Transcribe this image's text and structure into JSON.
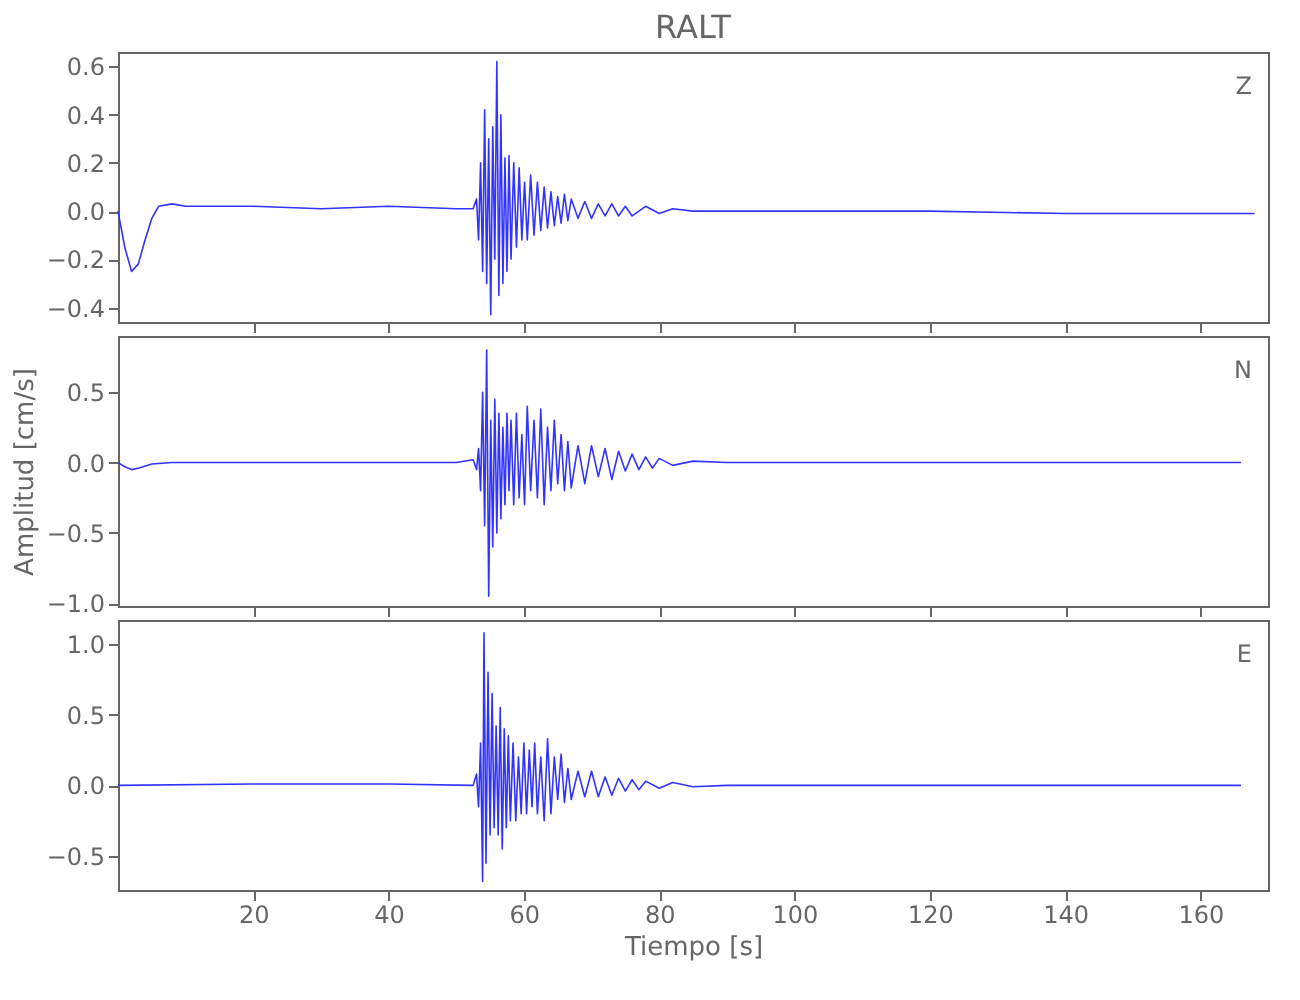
{
  "chart_data": [
    {
      "type": "line",
      "title": "RALT",
      "annotations": [
        "Z"
      ],
      "xlim": [
        0,
        170
      ],
      "xticks": [
        20,
        40,
        60,
        80,
        100,
        120,
        140,
        160
      ],
      "ylim": [
        -0.46,
        0.66
      ],
      "yticks": [
        -0.4,
        -0.2,
        {
          "value": 0,
          "label": "0.0"
        },
        0.2,
        0.4,
        0.6
      ],
      "tick_labels": "y",
      "grid": false,
      "line_style": "solid",
      "marker": "none",
      "x": [
        0,
        1,
        2,
        3,
        4,
        5,
        6,
        8,
        10,
        15,
        20,
        30,
        40,
        50,
        52.5,
        53,
        53.3,
        53.6,
        53.9,
        54.2,
        54.5,
        54.8,
        55.1,
        55.4,
        55.7,
        56,
        56.3,
        56.6,
        56.9,
        57.2,
        57.5,
        57.8,
        58.1,
        58.5,
        58.9,
        59.3,
        59.7,
        60.1,
        60.5,
        61,
        61.5,
        62,
        62.5,
        63,
        63.5,
        64,
        64.5,
        65,
        65.5,
        66,
        66.5,
        67,
        68,
        69,
        70,
        71,
        72,
        73,
        74,
        75,
        76,
        78,
        80,
        82,
        85,
        90,
        100,
        120,
        140,
        160,
        168
      ],
      "series": [
        {
          "color": "#3333ff",
          "values": [
            0,
            -0.15,
            -0.25,
            -0.22,
            -0.12,
            -0.03,
            0.02,
            0.03,
            0.02,
            0.02,
            0.02,
            0.01,
            0.02,
            0.01,
            0.01,
            0.05,
            -0.12,
            0.2,
            -0.25,
            0.42,
            -0.3,
            0.3,
            -0.43,
            0.35,
            -0.2,
            0.62,
            -0.35,
            0.4,
            -0.3,
            0.22,
            -0.25,
            0.23,
            -0.2,
            0.2,
            -0.15,
            0.18,
            -0.12,
            0.12,
            -0.12,
            0.15,
            -0.1,
            0.12,
            -0.08,
            0.1,
            -0.07,
            0.08,
            -0.06,
            0.06,
            -0.05,
            0.07,
            -0.04,
            0.05,
            -0.03,
            0.04,
            -0.03,
            0.03,
            -0.02,
            0.03,
            -0.02,
            0.02,
            -0.02,
            0.02,
            -0.01,
            0.01,
            0.0,
            0.0,
            0.0,
            0.0,
            -0.01,
            -0.01,
            -0.01
          ]
        }
      ]
    },
    {
      "type": "line",
      "ylabel": "Amplitud [cm/s]",
      "annotations": [
        "N"
      ],
      "xlim": [
        0,
        170
      ],
      "xticks": [
        20,
        40,
        60,
        80,
        100,
        120,
        140,
        160
      ],
      "ylim": [
        -1.02,
        0.9
      ],
      "yticks": [
        {
          "value": -1,
          "label": "−1.0"
        },
        -0.5,
        {
          "value": 0,
          "label": "0.0"
        },
        0.5
      ],
      "tick_labels": "y",
      "grid": false,
      "line_style": "solid",
      "marker": "none",
      "x": [
        0,
        1,
        2,
        3,
        5,
        8,
        20,
        40,
        50,
        52.5,
        53,
        53.3,
        53.6,
        53.9,
        54.2,
        54.5,
        54.8,
        55.1,
        55.4,
        55.7,
        56,
        56.3,
        56.6,
        56.9,
        57.2,
        57.5,
        57.8,
        58.1,
        58.5,
        58.9,
        59.3,
        59.7,
        60.1,
        60.5,
        61,
        61.5,
        62,
        62.5,
        63,
        63.5,
        64,
        64.5,
        65,
        65.5,
        66,
        66.5,
        67,
        68,
        69,
        70,
        71,
        72,
        73,
        74,
        75,
        76,
        77,
        78,
        79,
        80,
        82,
        85,
        90,
        100,
        120,
        140,
        160,
        166
      ],
      "series": [
        {
          "color": "#3333ff",
          "values": [
            0,
            -0.03,
            -0.05,
            -0.04,
            -0.01,
            0,
            0,
            0,
            0,
            0.02,
            -0.05,
            0.1,
            -0.2,
            0.5,
            -0.45,
            0.8,
            -0.95,
            0.3,
            -0.6,
            0.45,
            -0.5,
            0.35,
            -0.4,
            0.25,
            -0.3,
            0.35,
            -0.2,
            0.3,
            -0.3,
            0.35,
            -0.25,
            0.2,
            -0.3,
            0.4,
            -0.2,
            0.3,
            -0.25,
            0.38,
            -0.3,
            0.25,
            -0.2,
            0.3,
            -0.15,
            0.2,
            -0.2,
            0.15,
            -0.18,
            0.12,
            -0.15,
            0.12,
            -0.1,
            0.1,
            -0.12,
            0.08,
            -0.06,
            0.06,
            -0.05,
            0.04,
            -0.04,
            0.03,
            -0.02,
            0.01,
            0,
            0,
            0,
            0,
            0,
            0
          ]
        }
      ]
    },
    {
      "type": "line",
      "xlabel": "Tiempo [s]",
      "annotations": [
        "E"
      ],
      "xlim": [
        0,
        170
      ],
      "xticks": [
        20,
        40,
        60,
        80,
        100,
        120,
        140,
        160
      ],
      "ylim": [
        -0.74,
        1.17
      ],
      "yticks": [
        -0.5,
        {
          "value": 0,
          "label": "0.0"
        },
        0.5,
        {
          "value": 1,
          "label": "1.0"
        }
      ],
      "grid": false,
      "line_style": "solid",
      "marker": "none",
      "x": [
        0,
        20,
        40,
        52.5,
        53,
        53.3,
        53.6,
        53.9,
        54.1,
        54.4,
        54.7,
        55,
        55.3,
        55.6,
        55.9,
        56.2,
        56.5,
        56.8,
        57.1,
        57.4,
        57.7,
        58,
        58.4,
        58.8,
        59.2,
        59.6,
        60,
        60.4,
        60.8,
        61.2,
        61.6,
        62,
        62.5,
        63,
        63.5,
        64,
        64.5,
        65,
        65.5,
        66,
        66.5,
        67,
        68,
        69,
        70,
        71,
        72,
        73,
        74,
        75,
        76,
        77,
        78,
        80,
        82,
        85,
        90,
        100,
        120,
        140,
        160,
        166
      ],
      "series": [
        {
          "color": "#3333ff",
          "values": [
            0,
            0.01,
            0.01,
            0,
            0.08,
            -0.15,
            0.3,
            -0.68,
            1.08,
            -0.55,
            0.8,
            -0.35,
            0.65,
            -0.3,
            0.42,
            -0.35,
            0.55,
            -0.45,
            0.4,
            -0.3,
            0.35,
            -0.25,
            0.3,
            -0.25,
            0.2,
            -0.2,
            0.3,
            -0.2,
            0.25,
            -0.15,
            0.3,
            -0.2,
            0.2,
            -0.25,
            0.33,
            -0.2,
            0.2,
            -0.1,
            0.22,
            -0.12,
            0.12,
            -0.1,
            0.1,
            -0.08,
            0.1,
            -0.08,
            0.06,
            -0.07,
            0.05,
            -0.04,
            0.04,
            -0.03,
            0.03,
            -0.02,
            0.02,
            -0.01,
            0,
            0,
            0,
            0,
            0,
            0
          ]
        }
      ]
    }
  ]
}
